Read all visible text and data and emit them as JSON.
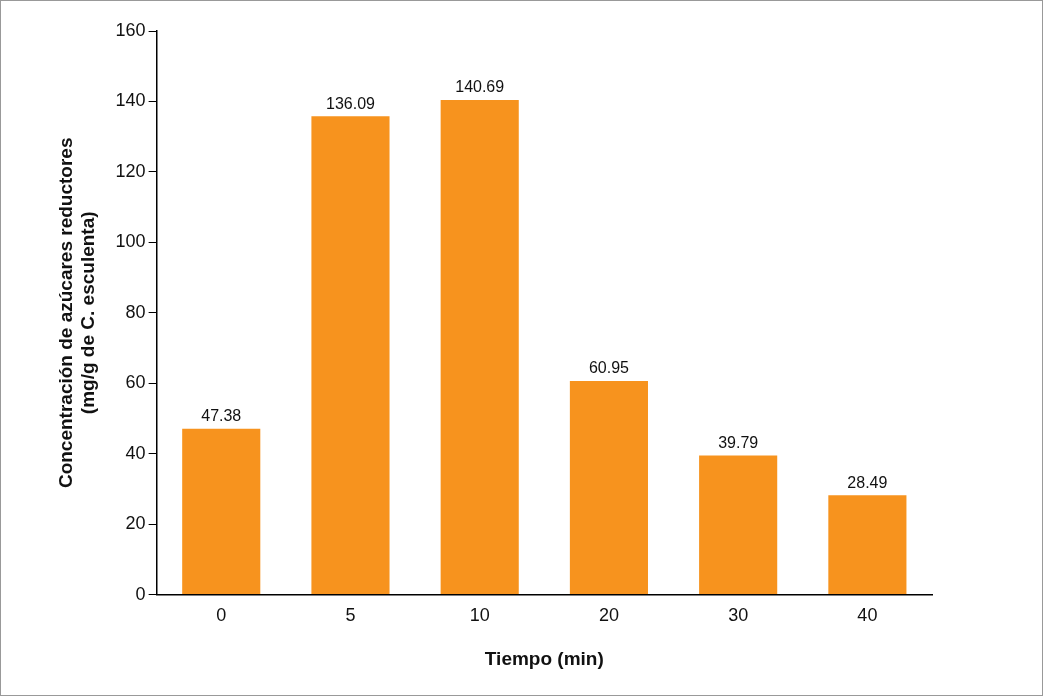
{
  "chart_data": {
    "type": "bar",
    "xlabel": "Tiempo (min)",
    "ylabel": "Concentración de azúcares reductores (mg/g de C. esculenta)",
    "categories": [
      "0",
      "5",
      "10",
      "20",
      "30",
      "40"
    ],
    "values": [
      47.38,
      136.09,
      140.69,
      60.95,
      39.79,
      28.49
    ],
    "color": "#f7931e",
    "value_labels": [
      "47.38",
      "136.09",
      "140.69",
      "60.95",
      "39.79",
      "28.49"
    ],
    "ylim": [
      0,
      160
    ],
    "yticks": [
      0,
      20,
      40,
      60,
      80,
      100,
      120,
      140,
      160
    ],
    "grid": false,
    "legend": false
  }
}
